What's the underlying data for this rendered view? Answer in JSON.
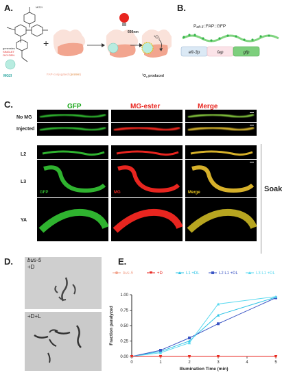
{
  "panels": {
    "a": "A.",
    "b": "B.",
    "c": "C.",
    "d": "D.",
    "e": "E."
  },
  "panel_a": {
    "mg2i_top": "MG2I",
    "generates": "generates",
    "singlet": "SINGLET",
    "oxygen": "OXYGEN",
    "mg2i_label": "MG2I",
    "fap_label_pre": "FAP-conjugated (",
    "fap_label_protein": "protein",
    "fap_label_post": ")",
    "wavelength": "660nm",
    "o2_sup": "1",
    "o2_main": "O",
    "o2_sub": "2",
    "produced_sup": "1",
    "produced_main": "O",
    "produced_sub": "2",
    "produced_tail": " produced",
    "plus": "+"
  },
  "panel_b": {
    "construct_prefix": "P",
    "construct_italic": "eft-3",
    "construct_rest": "::FAP::GFP",
    "box1": "eft-3p",
    "box2": "fap",
    "box3": "gfp"
  },
  "panel_c": {
    "headers": [
      "GFP",
      "MG-ester",
      "Merge"
    ],
    "rows_top": [
      "No MG",
      "Injected"
    ],
    "rows_bottom": [
      "L2",
      "L3",
      "YA"
    ],
    "inset_gfp": "GFP",
    "inset_mg": "MG",
    "inset_merge": "Merge",
    "soak": "Soak"
  },
  "panel_d": {
    "genotype": "bus-5",
    "cond1": "+D",
    "cond2": "+D+L"
  },
  "colors": {
    "gfp": "#1aa61a",
    "mg": "#e8251f",
    "merge": "#e6c21c",
    "bus5": "#f2a58f",
    "plusD": "#e8251f",
    "l1": "#2ec4e6",
    "l2": "#3a54c4",
    "l3": "#59d9f0"
  },
  "chart_data": {
    "type": "line",
    "xlabel": "Illumination Time (min)",
    "ylabel": "Fraction paralyzed",
    "xlim": [
      0,
      5
    ],
    "ylim": [
      0,
      1.0
    ],
    "xticks": [
      0,
      1,
      2,
      3,
      4,
      5
    ],
    "yticks": [
      "0.00",
      "0.25",
      "0.50",
      "0.75",
      "1.00"
    ],
    "legend_placement": "top",
    "series": [
      {
        "name": "bus-5",
        "x": [
          0,
          1,
          2,
          3,
          5
        ],
        "y": [
          0.0,
          0.0,
          0.0,
          0.0,
          0.0
        ]
      },
      {
        "name": "+D",
        "x": [
          0,
          1,
          2,
          3,
          5
        ],
        "y": [
          0.0,
          0.0,
          0.0,
          0.0,
          0.0
        ]
      },
      {
        "name": "L1 +DL",
        "x": [
          0,
          1,
          2,
          3,
          5
        ],
        "y": [
          0.0,
          0.08,
          0.25,
          0.67,
          0.96
        ]
      },
      {
        "name": "L2 L1 +DL",
        "x": [
          0,
          1,
          2,
          3,
          5
        ],
        "y": [
          0.0,
          0.1,
          0.3,
          0.53,
          0.95
        ]
      },
      {
        "name": "L3 L1 +DL",
        "x": [
          0,
          1,
          2,
          3,
          5
        ],
        "y": [
          0.0,
          0.06,
          0.22,
          0.85,
          0.97
        ]
      }
    ]
  }
}
